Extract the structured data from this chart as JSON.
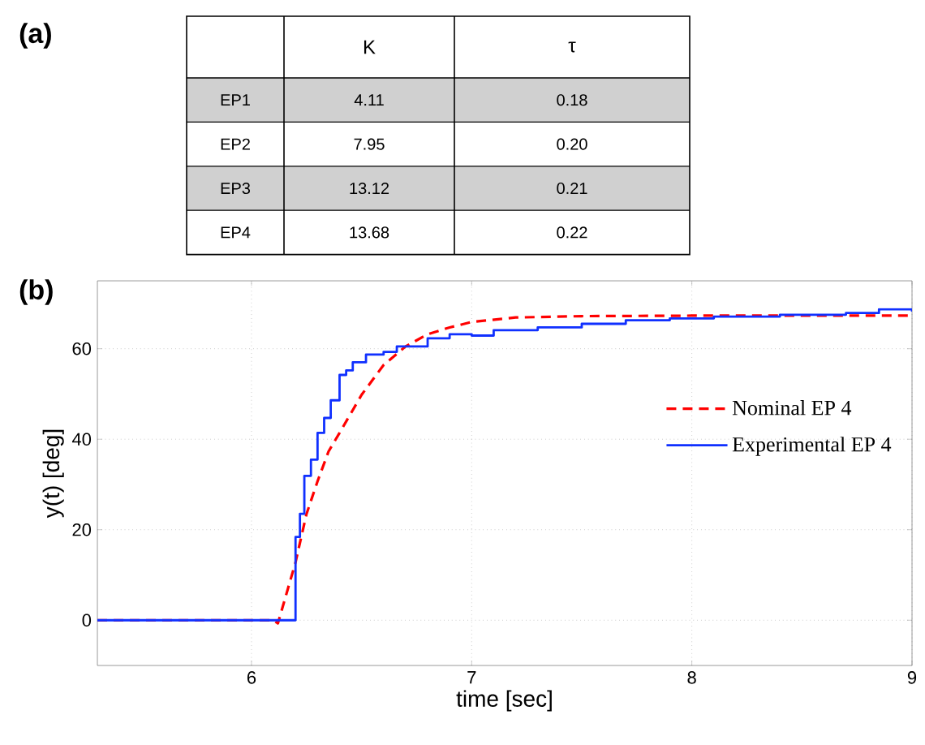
{
  "chart_data": [
    {
      "type": "other",
      "title": "(a)",
      "categories": [
        "K",
        "τ"
      ],
      "y_categories": [
        "EP1",
        "EP2",
        "EP3",
        "EP4"
      ],
      "annotations": [
        "4.11",
        "0.18",
        "7.95",
        "0.20",
        "13.12",
        "0.21",
        "13.68",
        "0.22"
      ]
    },
    {
      "type": "line",
      "title": "(b)",
      "xlabel": "time [sec]",
      "ylabel": "y(t) [deg]",
      "xlim": [
        5.3,
        9
      ],
      "ylim": [
        -10,
        75
      ],
      "xticks": [
        6,
        7,
        8,
        9
      ],
      "yticks": [
        0,
        20,
        40,
        60
      ],
      "grid": true,
      "legend": "right",
      "series": [
        {
          "name": "Nominal EP 4",
          "color": "#ff0000",
          "type": "line",
          "line_style": "dashed",
          "x": [
            5.3,
            6.0,
            6.1,
            6.12,
            6.2,
            6.25,
            6.3,
            6.35,
            6.4,
            6.5,
            6.6,
            6.7,
            6.8,
            6.9,
            7.0,
            7.2,
            7.5,
            8.0,
            9.0
          ],
          "values": [
            0,
            0,
            0,
            -0.7,
            12.8,
            23.5,
            30.7,
            37.3,
            41.4,
            49.8,
            56.4,
            60.5,
            63.2,
            64.7,
            65.9,
            66.9,
            67.2,
            67.3,
            67.3
          ]
        },
        {
          "name": "Experimental EP 4",
          "color": "#1030ff",
          "type": "step",
          "line_style": "solid",
          "x": [
            5.3,
            6.2,
            6.22,
            6.24,
            6.27,
            6.3,
            6.33,
            6.36,
            6.4,
            6.43,
            6.46,
            6.52,
            6.6,
            6.66,
            6.8,
            6.9,
            7.0,
            7.1,
            7.3,
            7.5,
            7.7,
            7.9,
            8.1,
            8.4,
            8.7,
            8.85,
            9.0
          ],
          "values": [
            0,
            18.4,
            23.5,
            31.9,
            35.5,
            41.4,
            44.7,
            48.6,
            54.2,
            55.2,
            57,
            58.7,
            59.3,
            60.5,
            62.3,
            63.2,
            62.9,
            64.1,
            64.7,
            65.5,
            66.3,
            66.7,
            67.1,
            67.5,
            67.9,
            68.7,
            68.2
          ]
        }
      ]
    }
  ]
}
